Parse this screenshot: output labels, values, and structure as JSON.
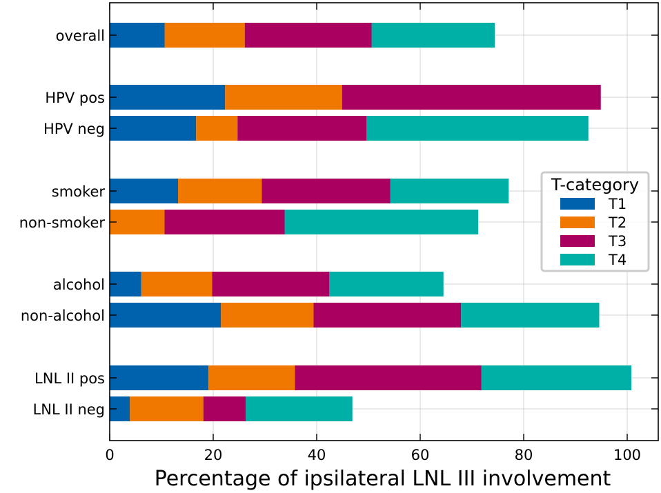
{
  "chart_data": {
    "type": "bar",
    "orientation": "horizontal",
    "stacked": true,
    "categories": [
      "overall",
      "HPV pos",
      "HPV neg",
      "smoker",
      "non-smoker",
      "alcohol",
      "non-alcohol",
      "LNL II pos",
      "LNL II neg"
    ],
    "series": [
      {
        "name": "T1",
        "color": "#0061ad",
        "values": [
          10.6,
          22.3,
          16.7,
          13.2,
          0.0,
          6.1,
          21.5,
          19.1,
          3.9
        ]
      },
      {
        "name": "T2",
        "color": "#f07800",
        "values": [
          15.5,
          22.6,
          8.0,
          16.2,
          10.6,
          13.7,
          17.9,
          16.7,
          14.2
        ]
      },
      {
        "name": "T3",
        "color": "#aa0060",
        "values": [
          24.5,
          50.0,
          24.9,
          24.8,
          23.2,
          22.6,
          28.5,
          36.0,
          8.2
        ]
      },
      {
        "name": "T4",
        "color": "#00afa5",
        "values": [
          23.8,
          0.0,
          42.9,
          22.9,
          37.4,
          22.1,
          26.7,
          29.0,
          20.6
        ]
      }
    ],
    "xlabel": "Percentage of ipsilateral LNL III involvement",
    "ylabel": "",
    "xlim": [
      0,
      106
    ],
    "xticks": [
      0,
      20,
      40,
      60,
      80,
      100
    ],
    "grid": true,
    "legend": {
      "title": "T-category",
      "placement": "right"
    }
  }
}
